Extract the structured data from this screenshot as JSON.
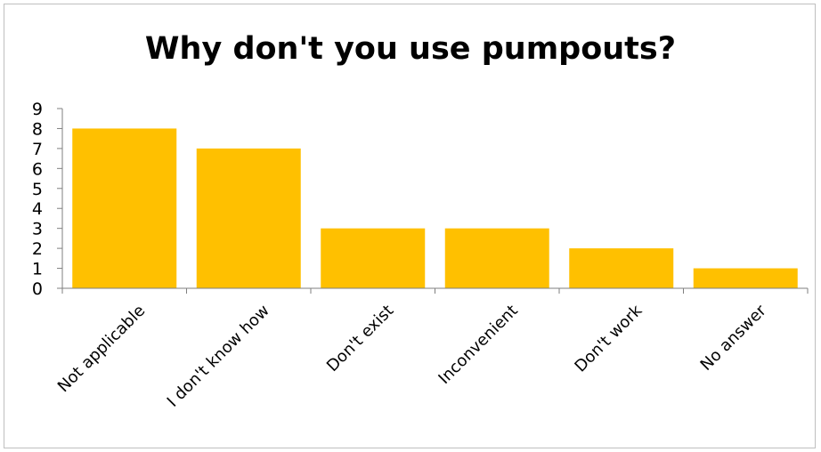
{
  "chart_data": {
    "type": "bar",
    "title": "Why don't you use pumpouts?",
    "categories": [
      "Not applicable",
      "I don't know how",
      "Don't exist",
      "Inconvenient",
      "Don't work",
      "No answer"
    ],
    "values": [
      8,
      7,
      3,
      3,
      2,
      1
    ],
    "ylim": [
      0,
      9
    ],
    "yticks": [
      0,
      1,
      2,
      3,
      4,
      5,
      6,
      7,
      8,
      9
    ],
    "xlabel": "",
    "ylabel": "",
    "grid": false,
    "bar_color": "#FFC000"
  }
}
